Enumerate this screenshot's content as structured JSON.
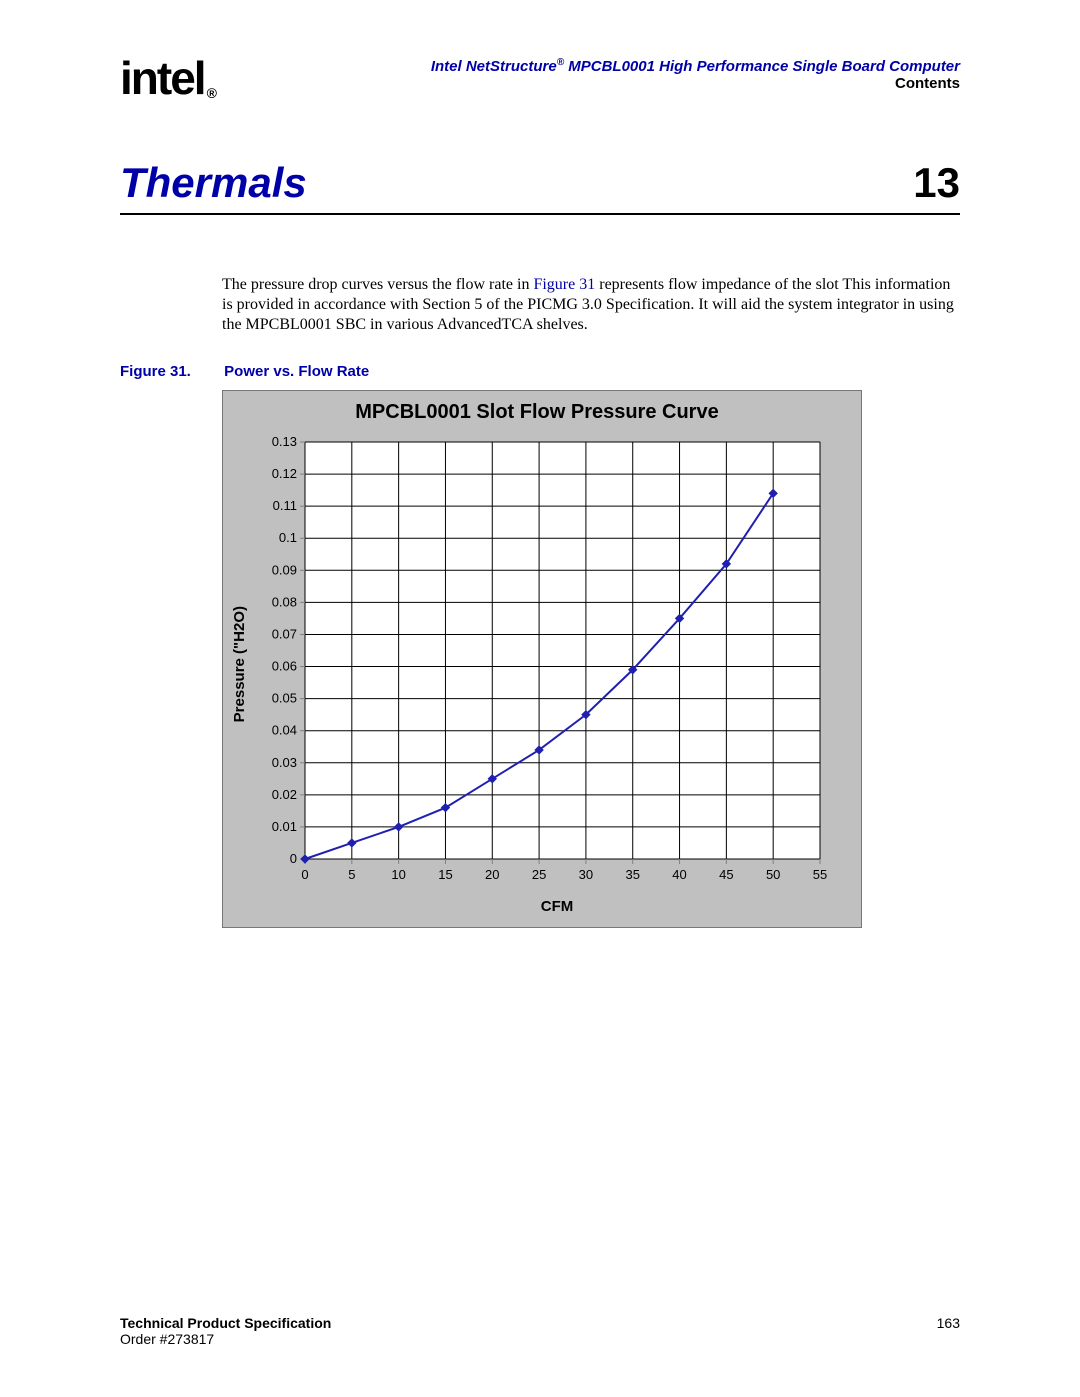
{
  "header": {
    "logo_text": "intel",
    "registered": "®",
    "doc_title": "Intel NetStructure® MPCBL0001 High Performance Single Board Computer",
    "doc_subtitle": "Contents"
  },
  "section": {
    "title": "Thermals",
    "number": "13"
  },
  "body": {
    "para_a": "The pressure drop curves versus the flow rate in ",
    "figref": "Figure 31",
    "para_b": " represents flow impedance of the slot This information is provided in accordance with Section 5 of the PICMG 3.0 Specification. It will aid the system integrator in using the MPCBL0001 SBC in various AdvancedTCA shelves."
  },
  "figure": {
    "label": "Figure 31.",
    "caption": "Power vs. Flow Rate"
  },
  "chart": {
    "type": "line",
    "title": "MPCBL0001 Slot Flow Pressure Curve",
    "xlabel": "CFM",
    "ylabel": "Pressure (\"H2O)",
    "xlim": [
      0,
      55
    ],
    "ylim": [
      0,
      0.13
    ],
    "xtick_step": 5,
    "ytick_step": 0.01,
    "xticks": [
      "0",
      "5",
      "10",
      "15",
      "20",
      "25",
      "30",
      "35",
      "40",
      "45",
      "50",
      "55"
    ],
    "yticks": [
      "0",
      "0.01",
      "0.02",
      "0.03",
      "0.04",
      "0.05",
      "0.06",
      "0.07",
      "0.08",
      "0.09",
      "0.1",
      "0.11",
      "0.12",
      "0.13"
    ],
    "x_values": [
      0,
      5,
      10,
      15,
      20,
      25,
      30,
      35,
      40,
      45,
      50
    ],
    "y_values": [
      0.0,
      0.005,
      0.01,
      0.016,
      0.025,
      0.034,
      0.045,
      0.059,
      0.075,
      0.092,
      0.114
    ],
    "line_color": "#2020b0",
    "marker_color": "#2020b0",
    "marker_shape": "diamond",
    "marker_size": 8,
    "line_width": 2,
    "plot_background": "#ffffff",
    "panel_background": "#c0c0c0",
    "grid_color": "#000000",
    "axis_color": "#808080",
    "tick_font_size": 13,
    "label_font_size": 15,
    "title_font_size": 20
  },
  "footer": {
    "left_line1": "Technical Product Specification",
    "left_line2": "Order #273817",
    "page_number": "163"
  }
}
